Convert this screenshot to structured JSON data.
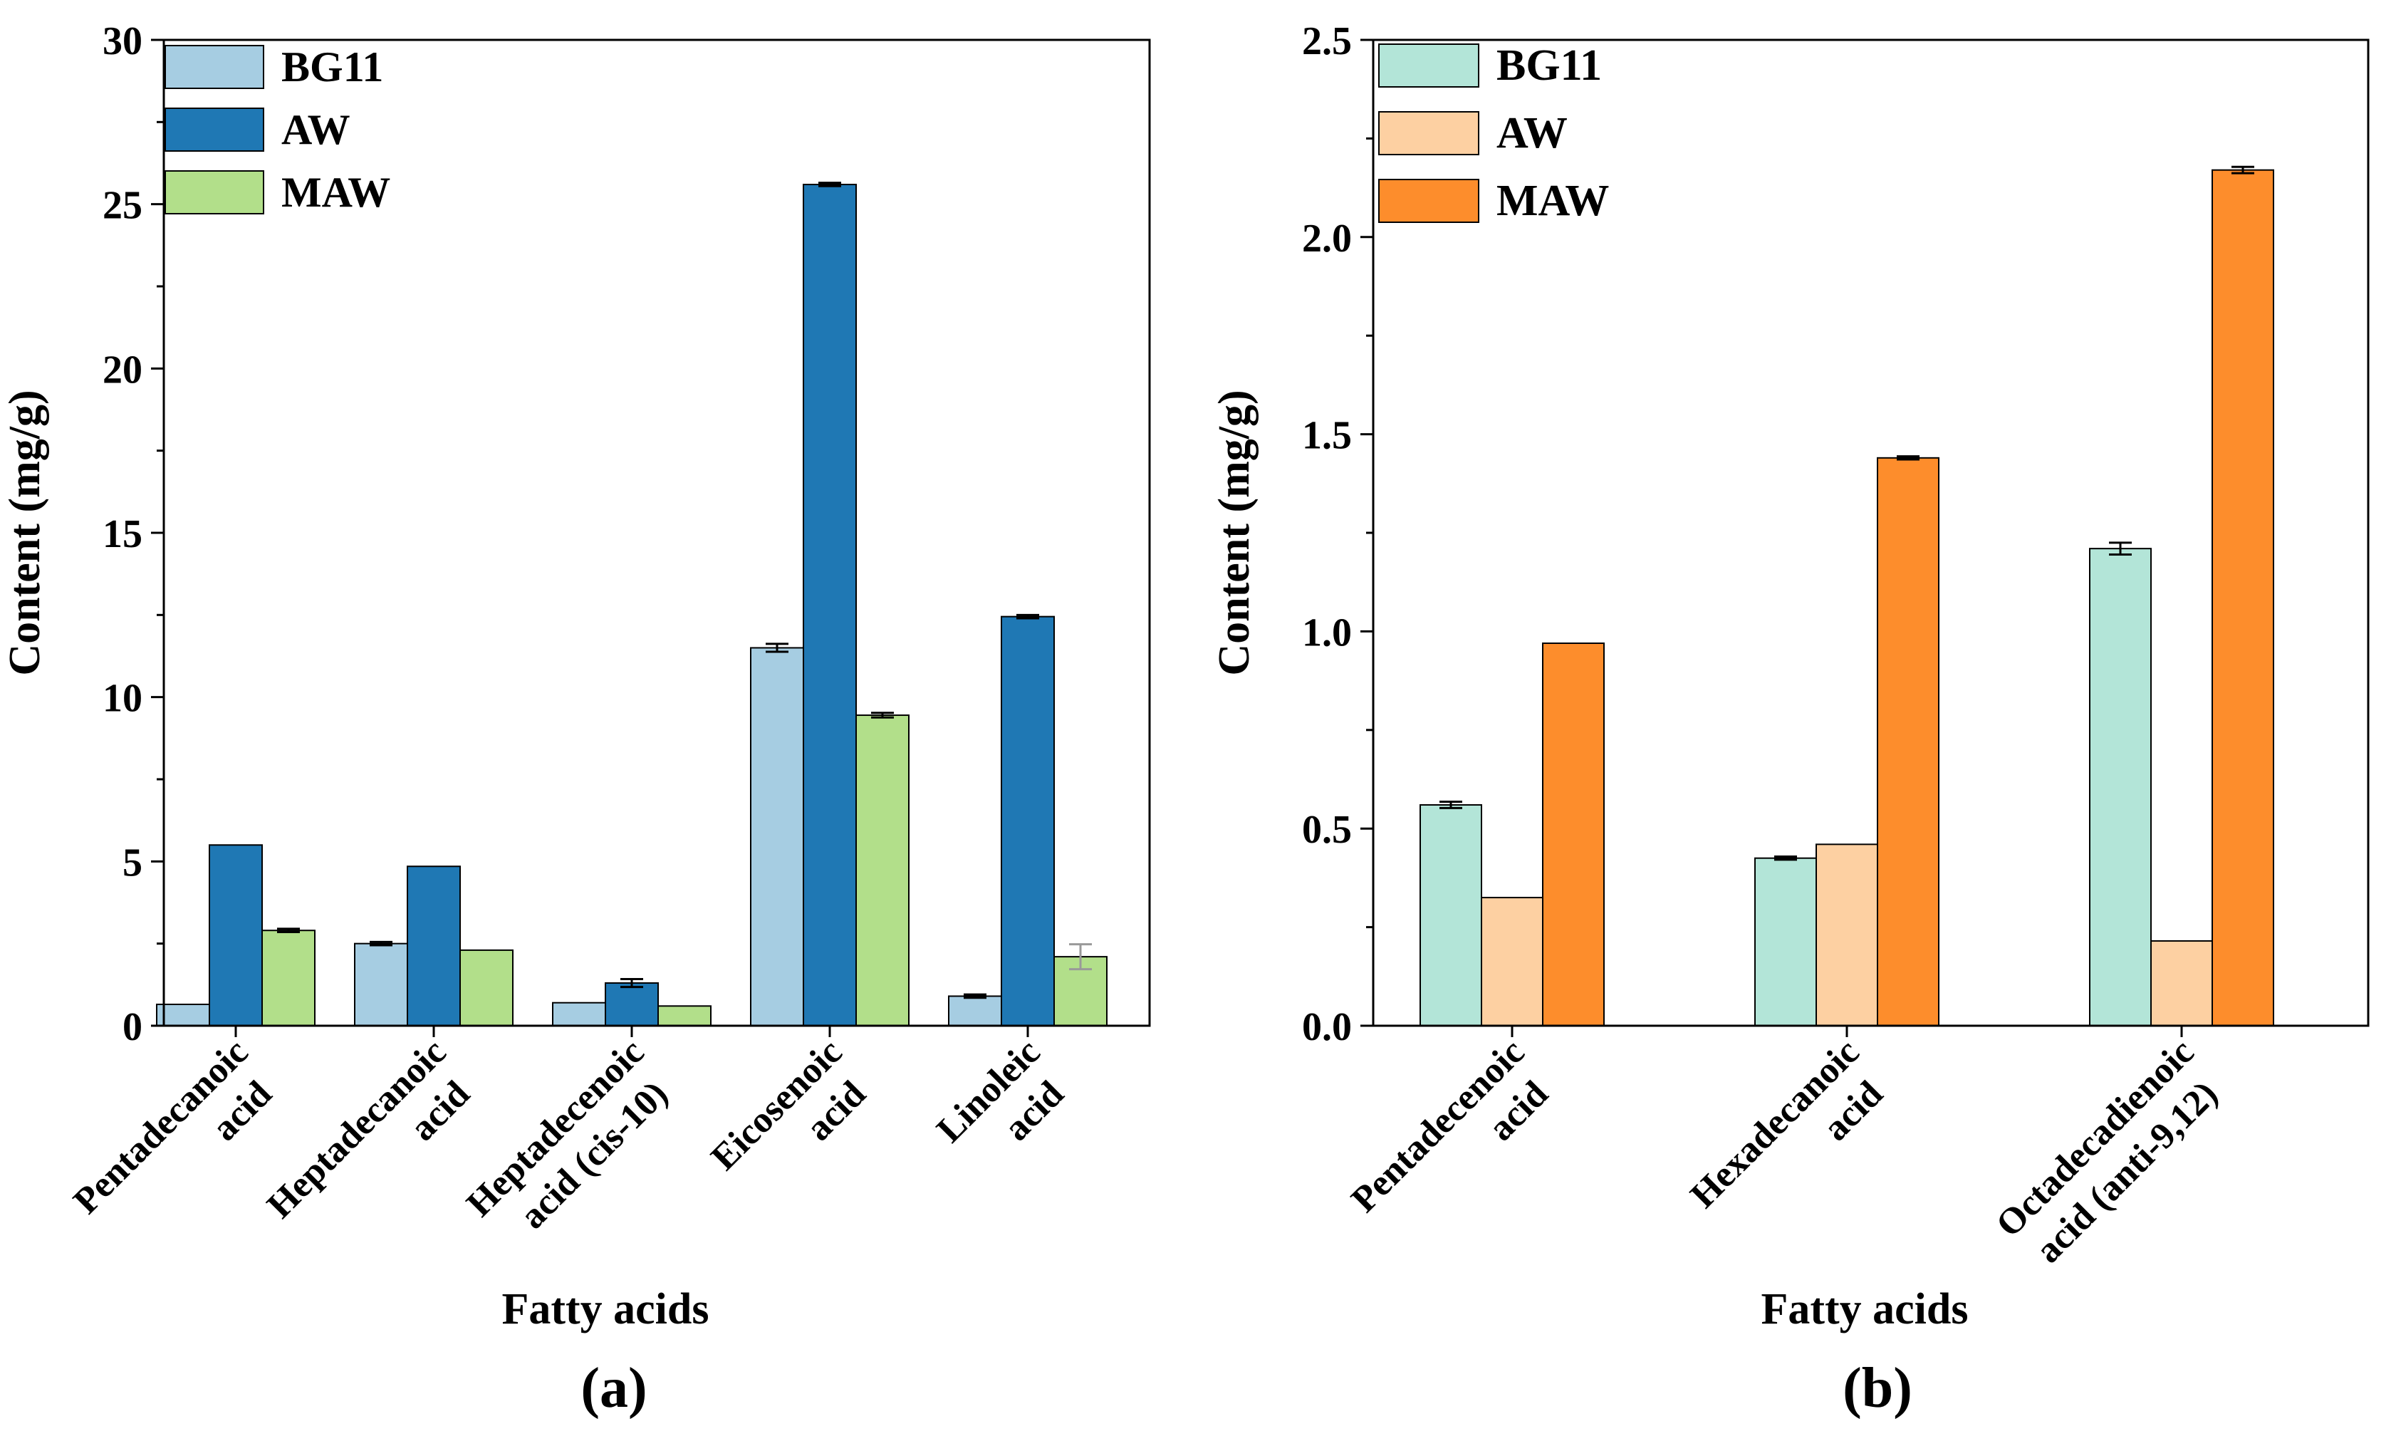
{
  "chart_data": [
    {
      "type": "bar",
      "panel_label": "(a)",
      "xlabel": "Fatty acids",
      "ylabel": "Content (mg/g)",
      "ylim": [
        0,
        30
      ],
      "yticks": [
        0,
        5,
        10,
        15,
        20,
        25,
        30
      ],
      "legend_position": "top-left",
      "categories": [
        [
          "Pentadecanoic",
          "acid"
        ],
        [
          "Heptadecanoic",
          "acid"
        ],
        [
          "Heptadecenoic",
          "acid (cis-10)"
        ],
        [
          "Eicosenoic",
          "acid"
        ],
        [
          "Linoleic",
          "acid"
        ]
      ],
      "series": [
        {
          "name": "BG11",
          "color": "#a6cde2",
          "values": [
            0.65,
            2.5,
            0.7,
            11.5,
            0.9
          ],
          "errors": [
            0,
            0.05,
            0,
            0.12,
            0.05
          ]
        },
        {
          "name": "AW",
          "color": "#1f78b4",
          "values": [
            5.5,
            4.85,
            1.3,
            25.6,
            12.45
          ],
          "errors": [
            0,
            0,
            0.12,
            0.05,
            0.05
          ]
        },
        {
          "name": "MAW",
          "color": "#b2df8a",
          "values": [
            2.9,
            2.3,
            0.6,
            9.45,
            2.1
          ],
          "errors": [
            0.05,
            0,
            0,
            0.07,
            0.38
          ]
        }
      ]
    },
    {
      "type": "bar",
      "panel_label": "(b)",
      "xlabel": "Fatty acids",
      "ylabel": "Content (mg/g)",
      "ylim": [
        0,
        2.5
      ],
      "yticks": [
        "0.0",
        "0.5",
        "1.0",
        "1.5",
        "2.0",
        "2.5"
      ],
      "legend_position": "top-left",
      "categories": [
        [
          "Pentadecenoic",
          "acid"
        ],
        [
          "Hexadecanoic",
          "acid"
        ],
        [
          "Octadecadienoic",
          "acid (anti-9,12)"
        ]
      ],
      "series": [
        {
          "name": "BG11",
          "color": "#b3e5d8",
          "values": [
            0.56,
            0.425,
            1.21
          ],
          "errors": [
            0.008,
            0.004,
            0.015
          ]
        },
        {
          "name": "AW",
          "color": "#fdd0a2",
          "values": [
            0.325,
            0.46,
            0.215
          ],
          "errors": [
            0,
            0,
            0
          ]
        },
        {
          "name": "MAW",
          "color": "#fd8d2c",
          "values": [
            0.97,
            1.44,
            2.17
          ],
          "errors": [
            0,
            0.004,
            0.008
          ]
        }
      ]
    }
  ]
}
